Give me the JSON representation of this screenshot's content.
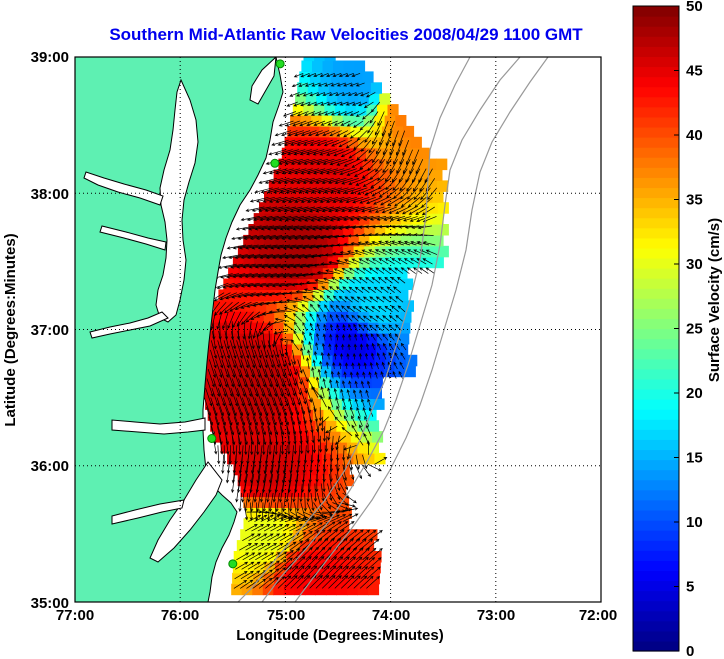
{
  "chart_data": {
    "type": "heatmap",
    "title": "Southern Mid-Atlantic Raw Velocities 2008/04/29 1100 GMT",
    "xlabel": "Longitude (Degrees:Minutes)",
    "ylabel": "Latitude (Degrees:Minutes)",
    "xlim": [
      -77,
      -72
    ],
    "ylim": [
      35,
      39
    ],
    "x_ticks": [
      -77,
      -76,
      -75,
      -74,
      -73,
      -72
    ],
    "x_tick_labels": [
      "77:00",
      "76:00",
      "75:00",
      "74:00",
      "73:00",
      "72:00"
    ],
    "y_ticks": [
      35,
      36,
      37,
      38,
      39
    ],
    "y_tick_labels": [
      "35:00",
      "36:00",
      "37:00",
      "38:00",
      "39:00"
    ],
    "grid": true,
    "colorbar": {
      "label": "Surface Velocity (cm/s)",
      "range": [
        0,
        50
      ],
      "ticks": [
        0,
        5,
        10,
        15,
        20,
        25,
        30,
        35,
        40,
        45,
        50
      ],
      "tick_labels": [
        "0",
        "5",
        "10",
        "15",
        "20",
        "25",
        "30",
        "35",
        "40",
        "45",
        "50"
      ],
      "colormap": "jet"
    },
    "colors": {
      "land": "#5ef0b2",
      "title": "#0000ee",
      "station": "#22dd22"
    },
    "stations": [
      {
        "lon": -75.05,
        "lat": 38.95
      },
      {
        "lon": -75.1,
        "lat": 38.22
      },
      {
        "lon": -75.7,
        "lat": 36.2
      },
      {
        "lon": -75.5,
        "lat": 35.28
      }
    ],
    "velocity_regions": [
      {
        "name": "delmarva-shelf",
        "lon": -74.7,
        "lat": 38.1,
        "speed": 45,
        "dir_deg": 255
      },
      {
        "name": "northern-cyan",
        "lon": -74.35,
        "lat": 38.8,
        "speed": 14,
        "dir_deg": 250
      },
      {
        "name": "ne-edge",
        "lon": -73.85,
        "lat": 38.6,
        "speed": 38,
        "dir_deg": 200
      },
      {
        "name": "cape-charles-jet",
        "lon": -74.9,
        "lat": 37.55,
        "speed": 48,
        "dir_deg": 260
      },
      {
        "name": "offshore-eddy",
        "lon": -74.25,
        "lat": 37.05,
        "speed": 18,
        "dir_deg": 300
      },
      {
        "name": "eddy-core",
        "lon": -74.35,
        "lat": 36.92,
        "speed": 4,
        "dir_deg": 0
      },
      {
        "name": "chesapeake-outflow",
        "lon": -75.3,
        "lat": 36.6,
        "speed": 47,
        "dir_deg": 160
      },
      {
        "name": "outer-banks",
        "lon": -75.2,
        "lat": 35.9,
        "speed": 46,
        "dir_deg": 190
      },
      {
        "name": "hatteras-south",
        "lon": -75.25,
        "lat": 35.45,
        "speed": 30,
        "dir_deg": 60
      },
      {
        "name": "hatteras-tip",
        "lon": -74.85,
        "lat": 35.15,
        "speed": 44,
        "dir_deg": 45
      }
    ]
  }
}
